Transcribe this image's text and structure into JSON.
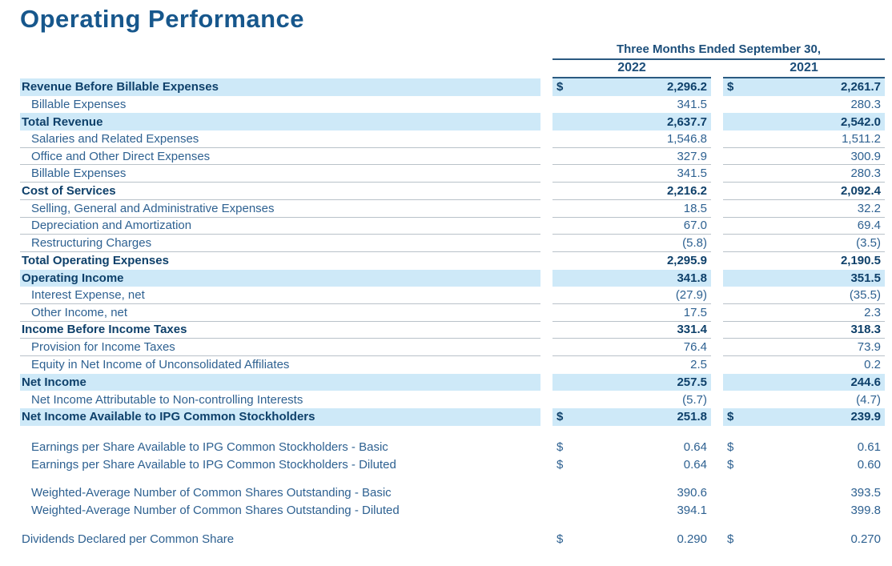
{
  "page": {
    "title": "Operating Performance"
  },
  "colors": {
    "title_blue": "#17578c",
    "bold_navy": "#0e406a",
    "body_blue": "#2e6191",
    "row_highlight": "#cee9f8",
    "header_rule": "#2b5a81",
    "row_rule": "#b9c2c9"
  },
  "table": {
    "column_group_header": "Three Months Ended September 30,",
    "columns": [
      "2022",
      "2021"
    ],
    "currency_symbol": "$",
    "rows": [
      {
        "label": "Revenue Before Billable Expenses",
        "bold": true,
        "hl": true,
        "dollar": true,
        "values": [
          "2,296.2",
          "2,261.7"
        ]
      },
      {
        "label": "Billable Expenses",
        "indent": true,
        "values": [
          "341.5",
          "280.3"
        ]
      },
      {
        "label": "Total Revenue",
        "bold": true,
        "hl": true,
        "values": [
          "2,637.7",
          "2,542.0"
        ]
      },
      {
        "label": "Salaries and Related Expenses",
        "indent": true,
        "sep": true,
        "values": [
          "1,546.8",
          "1,511.2"
        ]
      },
      {
        "label": "Office and Other Direct Expenses",
        "indent": true,
        "sep": true,
        "values": [
          "327.9",
          "300.9"
        ]
      },
      {
        "label": "Billable Expenses",
        "indent": true,
        "sep": true,
        "values": [
          "341.5",
          "280.3"
        ]
      },
      {
        "label": "Cost of Services",
        "bold": true,
        "sep": true,
        "values": [
          "2,216.2",
          "2,092.4"
        ]
      },
      {
        "label": "Selling, General and Administrative Expenses",
        "indent": true,
        "sep": true,
        "values": [
          "18.5",
          "32.2"
        ]
      },
      {
        "label": "Depreciation and Amortization",
        "indent": true,
        "sep": true,
        "values": [
          "67.0",
          "69.4"
        ]
      },
      {
        "label": "Restructuring Charges",
        "indent": true,
        "sep": true,
        "values": [
          "(5.8)",
          "(3.5)"
        ]
      },
      {
        "label": "Total Operating Expenses",
        "bold": true,
        "values": [
          "2,295.9",
          "2,190.5"
        ]
      },
      {
        "label": "Operating Income",
        "bold": true,
        "hl": true,
        "values": [
          "341.8",
          "351.5"
        ]
      },
      {
        "label": "Interest Expense, net",
        "indent": true,
        "sep": true,
        "values": [
          "(27.9)",
          "(35.5)"
        ]
      },
      {
        "label": "Other Income, net",
        "indent": true,
        "sep": true,
        "values": [
          "17.5",
          "2.3"
        ]
      },
      {
        "label": "Income Before Income Taxes",
        "bold": true,
        "sep": true,
        "values": [
          "331.4",
          "318.3"
        ]
      },
      {
        "label": "Provision for Income Taxes",
        "indent": true,
        "sep": true,
        "values": [
          "76.4",
          "73.9"
        ]
      },
      {
        "label": "Equity in Net Income of Unconsolidated Affiliates",
        "indent": true,
        "values": [
          "2.5",
          "0.2"
        ]
      },
      {
        "label": "Net Income",
        "bold": true,
        "hl": true,
        "values": [
          "257.5",
          "244.6"
        ]
      },
      {
        "label": "Net Income Attributable to Non-controlling Interests",
        "indent": true,
        "values": [
          "(5.7)",
          "(4.7)"
        ]
      },
      {
        "label": "Net Income Available to IPG Common Stockholders",
        "bold": true,
        "hl": true,
        "dollar": true,
        "values": [
          "251.8",
          "239.9"
        ]
      }
    ],
    "bottom_rows": [
      {
        "label": "Earnings per Share Available to IPG Common Stockholders - Basic",
        "indent": true,
        "dollar": true,
        "values": [
          "0.64",
          "0.61"
        ]
      },
      {
        "label": "Earnings per Share Available to IPG Common Stockholders - Diluted",
        "indent": true,
        "dollar": true,
        "values": [
          "0.64",
          "0.60"
        ]
      },
      {
        "spacer": true
      },
      {
        "label": "Weighted-Average Number of Common Shares Outstanding - Basic",
        "indent": true,
        "values": [
          "390.6",
          "393.5"
        ]
      },
      {
        "label": "Weighted-Average Number of Common Shares Outstanding - Diluted",
        "indent": true,
        "values": [
          "394.1",
          "399.8"
        ]
      },
      {
        "spacer": true
      },
      {
        "label": "Dividends Declared per Common Share",
        "dollar": true,
        "values": [
          "0.290",
          "0.270"
        ]
      }
    ]
  }
}
